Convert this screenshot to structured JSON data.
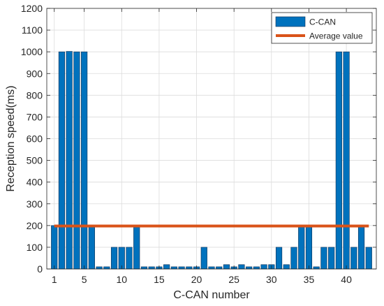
{
  "chart_data": {
    "type": "bar",
    "xlabel": "C-CAN number",
    "ylabel": "Reception speed(ms)",
    "xlim": [
      0,
      44
    ],
    "ylim": [
      0,
      1200
    ],
    "x_ticks": [
      1,
      5,
      10,
      15,
      20,
      25,
      30,
      35,
      40
    ],
    "y_ticks": [
      0,
      100,
      200,
      300,
      400,
      500,
      600,
      700,
      800,
      900,
      1000,
      1100,
      1200
    ],
    "grid": true,
    "legend_position": "top-right",
    "categories": [
      1,
      2,
      3,
      4,
      5,
      6,
      7,
      8,
      9,
      10,
      11,
      12,
      13,
      14,
      15,
      16,
      17,
      18,
      19,
      20,
      21,
      22,
      23,
      24,
      25,
      26,
      27,
      28,
      29,
      30,
      31,
      32,
      33,
      34,
      35,
      36,
      37,
      38,
      39,
      40,
      41,
      42,
      43
    ],
    "series": [
      {
        "name": "C-CAN",
        "color": "#0072BD",
        "values": [
          200,
          1000,
          1002,
          1000,
          1000,
          200,
          10,
          10,
          100,
          100,
          100,
          200,
          10,
          10,
          10,
          20,
          10,
          10,
          10,
          10,
          100,
          10,
          10,
          20,
          10,
          20,
          10,
          10,
          20,
          20,
          100,
          20,
          100,
          200,
          200,
          10,
          100,
          100,
          1000,
          1000,
          100,
          200,
          100
        ]
      },
      {
        "name": "Average value",
        "type": "line",
        "color": "#D95319",
        "value": 198
      }
    ]
  }
}
